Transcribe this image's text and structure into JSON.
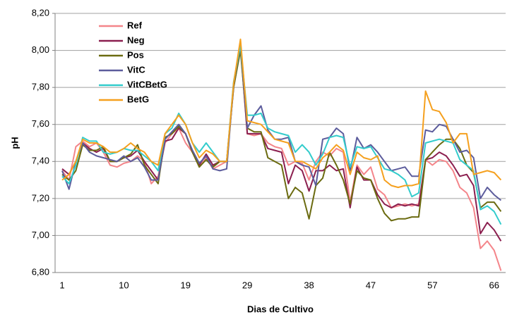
{
  "chart_data": {
    "type": "line",
    "x_label": "Dias de Cultivo",
    "y_label": "pH",
    "categories": [
      "1",
      null,
      null,
      null,
      null,
      null,
      null,
      null,
      null,
      "10",
      null,
      null,
      null,
      null,
      null,
      null,
      null,
      null,
      "19",
      null,
      null,
      null,
      null,
      null,
      null,
      null,
      null,
      "29",
      null,
      null,
      null,
      null,
      null,
      null,
      null,
      null,
      "38",
      null,
      null,
      null,
      null,
      null,
      null,
      null,
      null,
      "47",
      null,
      null,
      null,
      null,
      null,
      null,
      null,
      null,
      "57",
      null,
      null,
      null,
      null,
      null,
      null,
      null,
      null,
      "66",
      null
    ],
    "ylim": [
      6.8,
      8.2
    ],
    "yticks": [
      {
        "value": 6.8,
        "label": "6,80"
      },
      {
        "value": 7.0,
        "label": "7,00"
      },
      {
        "value": 7.2,
        "label": "7,20"
      },
      {
        "value": 7.4,
        "label": "7,40"
      },
      {
        "value": 7.6,
        "label": "7,60"
      },
      {
        "value": 7.8,
        "label": "7,80"
      },
      {
        "value": 8.0,
        "label": "8,00"
      },
      {
        "value": 8.2,
        "label": "8,20"
      }
    ],
    "grid": true,
    "legend": "upper-left",
    "series": [
      {
        "name": "Ref",
        "color": "#f4858a",
        "values": [
          7.35,
          7.3,
          7.48,
          7.51,
          7.48,
          7.5,
          7.45,
          7.38,
          7.37,
          7.39,
          7.4,
          7.43,
          7.4,
          7.28,
          7.32,
          7.5,
          7.55,
          7.58,
          7.5,
          7.45,
          7.37,
          7.42,
          7.36,
          7.38,
          7.4,
          7.82,
          8.04,
          7.55,
          7.54,
          7.55,
          7.5,
          7.48,
          7.47,
          7.38,
          7.4,
          7.39,
          7.3,
          7.4,
          7.45,
          7.43,
          7.47,
          7.45,
          7.18,
          7.38,
          7.33,
          7.37,
          7.25,
          7.22,
          7.15,
          7.16,
          7.17,
          7.16,
          7.17,
          7.41,
          7.38,
          7.41,
          7.4,
          7.35,
          7.26,
          7.23,
          7.15,
          6.93,
          6.97,
          6.92,
          6.81
        ]
      },
      {
        "name": "Neg",
        "color": "#8b1f4f",
        "values": [
          7.36,
          7.33,
          7.4,
          7.5,
          7.47,
          7.45,
          7.47,
          7.4,
          7.4,
          7.42,
          7.43,
          7.46,
          7.4,
          7.35,
          7.3,
          7.51,
          7.52,
          7.58,
          7.55,
          7.45,
          7.38,
          7.44,
          7.38,
          7.4,
          7.4,
          7.8,
          8.02,
          7.55,
          7.55,
          7.55,
          7.47,
          7.46,
          7.45,
          7.28,
          7.38,
          7.35,
          7.24,
          7.35,
          7.35,
          7.38,
          7.35,
          7.36,
          7.15,
          7.37,
          7.3,
          7.3,
          7.22,
          7.17,
          7.15,
          7.17,
          7.16,
          7.17,
          7.16,
          7.41,
          7.42,
          7.45,
          7.43,
          7.38,
          7.32,
          7.33,
          7.27,
          7.01,
          7.07,
          7.03,
          6.97
        ]
      },
      {
        "name": "Pos",
        "color": "#6b6b10",
        "values": [
          7.33,
          7.3,
          7.35,
          7.49,
          7.46,
          7.46,
          7.48,
          7.4,
          7.4,
          7.42,
          7.44,
          7.49,
          7.38,
          7.33,
          7.28,
          7.53,
          7.55,
          7.59,
          7.55,
          7.45,
          7.37,
          7.41,
          7.37,
          7.4,
          7.4,
          7.8,
          8.0,
          7.58,
          7.56,
          7.56,
          7.42,
          7.4,
          7.38,
          7.2,
          7.26,
          7.23,
          7.09,
          7.27,
          7.31,
          7.45,
          7.38,
          7.3,
          7.17,
          7.35,
          7.31,
          7.3,
          7.2,
          7.12,
          7.08,
          7.09,
          7.09,
          7.1,
          7.1,
          7.41,
          7.45,
          7.49,
          7.52,
          7.52,
          7.47,
          7.38,
          7.34,
          7.15,
          7.18,
          7.18,
          7.13
        ]
      },
      {
        "name": "VitC",
        "color": "#5c5c9c",
        "values": [
          7.35,
          7.25,
          7.4,
          7.5,
          7.45,
          7.43,
          7.42,
          7.41,
          7.4,
          7.43,
          7.4,
          7.42,
          7.37,
          7.3,
          7.3,
          7.52,
          7.56,
          7.6,
          7.55,
          7.46,
          7.39,
          7.43,
          7.36,
          7.35,
          7.36,
          7.82,
          8.03,
          7.58,
          7.65,
          7.7,
          7.57,
          7.52,
          7.52,
          7.53,
          7.4,
          7.38,
          7.37,
          7.27,
          7.52,
          7.53,
          7.58,
          7.55,
          7.35,
          7.53,
          7.47,
          7.49,
          7.45,
          7.4,
          7.35,
          7.36,
          7.37,
          7.32,
          7.32,
          7.57,
          7.56,
          7.6,
          7.59,
          7.52,
          7.45,
          7.46,
          7.42,
          7.2,
          7.26,
          7.22,
          7.19
        ]
      },
      {
        "name": "VitCBetG",
        "color": "#33cccc",
        "values": [
          7.32,
          7.28,
          7.38,
          7.53,
          7.51,
          7.51,
          7.45,
          7.44,
          7.45,
          7.47,
          7.46,
          7.46,
          7.43,
          7.4,
          7.35,
          7.55,
          7.58,
          7.66,
          7.6,
          7.5,
          7.45,
          7.5,
          7.45,
          7.4,
          7.4,
          7.83,
          8.03,
          7.65,
          7.65,
          7.66,
          7.58,
          7.56,
          7.55,
          7.54,
          7.45,
          7.49,
          7.45,
          7.38,
          7.44,
          7.53,
          7.54,
          7.53,
          7.37,
          7.48,
          7.47,
          7.48,
          7.42,
          7.36,
          7.35,
          7.33,
          7.3,
          7.21,
          7.23,
          7.5,
          7.51,
          7.52,
          7.51,
          7.5,
          7.41,
          7.38,
          7.35,
          7.14,
          7.16,
          7.13,
          7.06
        ]
      },
      {
        "name": "BetG",
        "color": "#f5a01e",
        "values": [
          7.3,
          7.33,
          7.4,
          7.52,
          7.5,
          7.5,
          7.48,
          7.45,
          7.45,
          7.47,
          7.5,
          7.47,
          7.45,
          7.4,
          7.38,
          7.55,
          7.6,
          7.65,
          7.6,
          7.5,
          7.42,
          7.46,
          7.44,
          7.4,
          7.4,
          7.82,
          8.06,
          7.62,
          7.61,
          7.6,
          7.56,
          7.52,
          7.51,
          7.5,
          7.4,
          7.4,
          7.38,
          7.36,
          7.42,
          7.45,
          7.49,
          7.46,
          7.33,
          7.45,
          7.42,
          7.41,
          7.43,
          7.3,
          7.27,
          7.26,
          7.27,
          7.27,
          7.28,
          7.78,
          7.68,
          7.67,
          7.61,
          7.5,
          7.55,
          7.55,
          7.33,
          7.34,
          7.35,
          7.34,
          7.3
        ]
      }
    ]
  }
}
